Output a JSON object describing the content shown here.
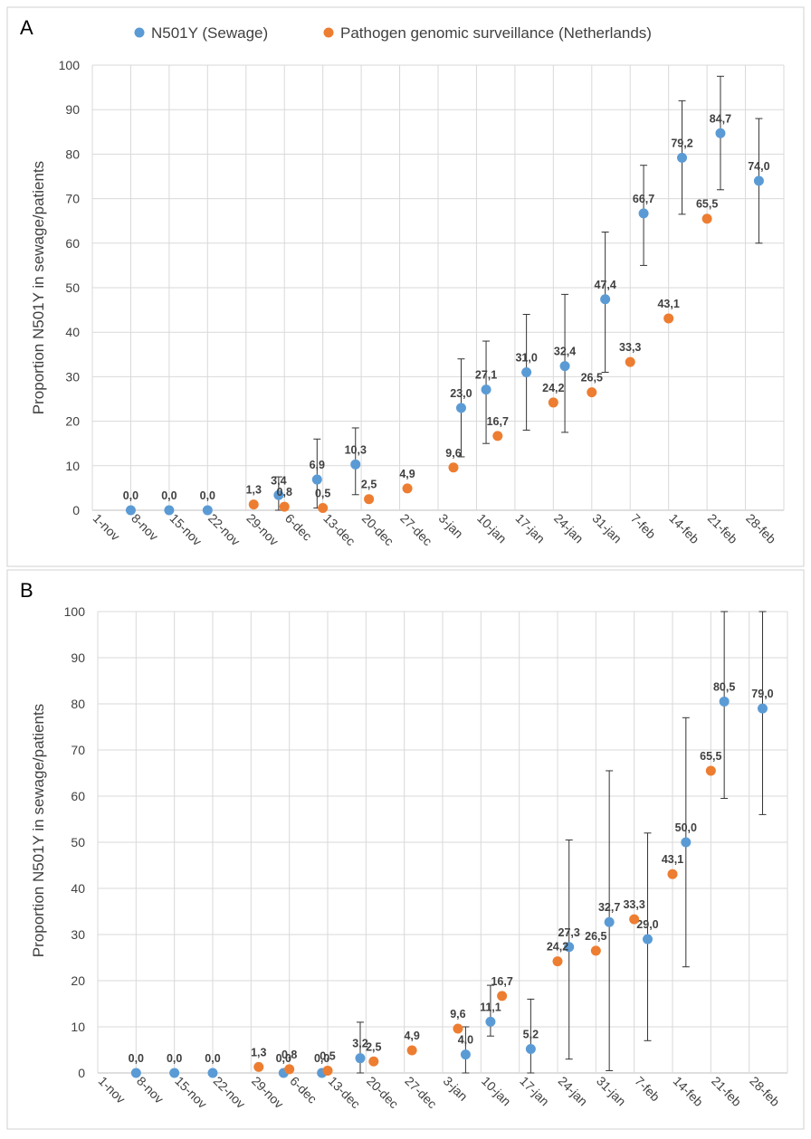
{
  "legend": {
    "sewage_label": "N501Y (Sewage)",
    "surveillance_label": "Pathogen genomic surveillance (Netherlands)"
  },
  "colors": {
    "sewage": "#5b9bd5",
    "surveillance": "#ed7d31"
  },
  "chart_data": [
    {
      "type": "scatter",
      "panel_label": "A",
      "title": "",
      "xlabel": "",
      "ylabel": "Proportion N501Y in sewage/patients",
      "ylim": [
        0,
        100
      ],
      "yticks": [
        "0",
        "10",
        "20",
        "30",
        "40",
        "50",
        "60",
        "70",
        "80",
        "90",
        "100"
      ],
      "categories": [
        "1-nov",
        "8-nov",
        "15-nov",
        "22-nov",
        "29-nov",
        "6-dec",
        "13-dec",
        "20-dec",
        "27-dec",
        "3-jan",
        "10-jan",
        "17-jan",
        "24-jan",
        "31-jan",
        "7-feb",
        "14-feb",
        "21-feb",
        "28-feb"
      ],
      "grid": true,
      "legend_position": "top",
      "series": [
        {
          "name": "N501Y (Sewage)",
          "points": [
            {
              "x": 1,
              "y": 0.0,
              "label": "0,0"
            },
            {
              "x": 2,
              "y": 0.0,
              "label": "0,0"
            },
            {
              "x": 3,
              "y": 0.0,
              "label": "0,0"
            },
            {
              "x": 4.85,
              "y": 3.4,
              "label": "3,4",
              "err": [
                0.0,
                7.5
              ]
            },
            {
              "x": 5.85,
              "y": 6.9,
              "label": "6,9",
              "err": [
                0.5,
                16.0
              ]
            },
            {
              "x": 6.85,
              "y": 10.3,
              "label": "10,3",
              "err": [
                3.5,
                18.5
              ]
            },
            {
              "x": 9.6,
              "y": 23.0,
              "label": "23,0",
              "err": [
                12.0,
                34.0
              ]
            },
            {
              "x": 10.25,
              "y": 27.1,
              "label": "27,1",
              "err": [
                15.0,
                38.0
              ]
            },
            {
              "x": 11.3,
              "y": 31.0,
              "label": "31,0",
              "err": [
                18.0,
                44.0
              ]
            },
            {
              "x": 12.3,
              "y": 32.4,
              "label": "32,4",
              "err": [
                17.5,
                48.5
              ]
            },
            {
              "x": 13.35,
              "y": 47.4,
              "label": "47,4",
              "err": [
                31.0,
                62.5
              ]
            },
            {
              "x": 14.35,
              "y": 66.7,
              "label": "66,7",
              "err": [
                55.0,
                77.5
              ]
            },
            {
              "x": 15.35,
              "y": 79.2,
              "label": "79,2",
              "err": [
                66.5,
                92.0
              ]
            },
            {
              "x": 16.35,
              "y": 84.7,
              "label": "84,7",
              "err": [
                72.0,
                97.5
              ]
            },
            {
              "x": 17.35,
              "y": 74.0,
              "label": "74,0",
              "err": [
                60.0,
                88.0
              ]
            }
          ]
        },
        {
          "name": "Pathogen genomic surveillance (Netherlands)",
          "points": [
            {
              "x": 4.2,
              "y": 1.3,
              "label": "1,3"
            },
            {
              "x": 5.0,
              "y": 0.8,
              "label": "0,8"
            },
            {
              "x": 6.0,
              "y": 0.5,
              "label": "0,5"
            },
            {
              "x": 7.2,
              "y": 2.5,
              "label": "2,5"
            },
            {
              "x": 8.2,
              "y": 4.9,
              "label": "4,9"
            },
            {
              "x": 9.4,
              "y": 9.6,
              "label": "9,6"
            },
            {
              "x": 10.55,
              "y": 16.7,
              "label": "16,7"
            },
            {
              "x": 12.0,
              "y": 24.2,
              "label": "24,2"
            },
            {
              "x": 13.0,
              "y": 26.5,
              "label": "26,5"
            },
            {
              "x": 14.0,
              "y": 33.3,
              "label": "33,3"
            },
            {
              "x": 15.0,
              "y": 43.1,
              "label": "43,1"
            },
            {
              "x": 16.0,
              "y": 65.5,
              "label": "65,5"
            }
          ]
        }
      ]
    },
    {
      "type": "scatter",
      "panel_label": "B",
      "title": "",
      "xlabel": "",
      "ylabel": "Proportion N501Y in sewage/patients",
      "ylim": [
        0,
        100
      ],
      "yticks": [
        "0",
        "10",
        "20",
        "30",
        "40",
        "50",
        "60",
        "70",
        "80",
        "90",
        "100"
      ],
      "categories": [
        "1-nov",
        "8-nov",
        "15-nov",
        "22-nov",
        "29-nov",
        "6-dec",
        "13-dec",
        "20-dec",
        "27-dec",
        "3-jan",
        "10-jan",
        "17-jan",
        "24-jan",
        "31-jan",
        "7-feb",
        "14-feb",
        "21-feb",
        "28-feb"
      ],
      "grid": true,
      "series": [
        {
          "name": "N501Y (Sewage)",
          "points": [
            {
              "x": 1,
              "y": 0.0,
              "label": "0,0"
            },
            {
              "x": 2,
              "y": 0.0,
              "label": "0,0"
            },
            {
              "x": 3,
              "y": 0.0,
              "label": "0,0"
            },
            {
              "x": 4.85,
              "y": 0.0,
              "label": "0,0"
            },
            {
              "x": 5.85,
              "y": 0.0,
              "label": "0,0"
            },
            {
              "x": 6.85,
              "y": 3.2,
              "label": "3,2",
              "err": [
                0.0,
                11.0
              ]
            },
            {
              "x": 9.6,
              "y": 4.0,
              "label": "4,0",
              "err": [
                0.0,
                10.0
              ]
            },
            {
              "x": 10.25,
              "y": 11.1,
              "label": "11,1",
              "err": [
                8.0,
                19.0
              ]
            },
            {
              "x": 11.3,
              "y": 5.2,
              "label": "5,2",
              "err": [
                0.0,
                16.0
              ]
            },
            {
              "x": 12.3,
              "y": 27.3,
              "label": "27,3",
              "err": [
                3.0,
                50.5
              ]
            },
            {
              "x": 13.35,
              "y": 32.7,
              "label": "32,7",
              "err": [
                0.5,
                65.5
              ]
            },
            {
              "x": 14.35,
              "y": 29.0,
              "label": "29,0",
              "err": [
                7.0,
                52.0
              ]
            },
            {
              "x": 15.35,
              "y": 50.0,
              "label": "50,0",
              "err": [
                23.0,
                77.0
              ]
            },
            {
              "x": 16.35,
              "y": 80.5,
              "label": "80,5",
              "err": [
                59.5,
                100.0
              ]
            },
            {
              "x": 17.35,
              "y": 79.0,
              "label": "79,0",
              "err": [
                56.0,
                100.0
              ]
            }
          ]
        },
        {
          "name": "Pathogen genomic surveillance (Netherlands)",
          "points": [
            {
              "x": 4.2,
              "y": 1.3,
              "label": "1,3"
            },
            {
              "x": 5.0,
              "y": 0.8,
              "label": "0,8"
            },
            {
              "x": 6.0,
              "y": 0.5,
              "label": "0,5"
            },
            {
              "x": 7.2,
              "y": 2.5,
              "label": "2,5"
            },
            {
              "x": 8.2,
              "y": 4.9,
              "label": "4,9"
            },
            {
              "x": 9.4,
              "y": 9.6,
              "label": "9,6"
            },
            {
              "x": 10.55,
              "y": 16.7,
              "label": "16,7"
            },
            {
              "x": 12.0,
              "y": 24.2,
              "label": "24,2"
            },
            {
              "x": 13.0,
              "y": 26.5,
              "label": "26,5"
            },
            {
              "x": 14.0,
              "y": 33.3,
              "label": "33,3"
            },
            {
              "x": 15.0,
              "y": 43.1,
              "label": "43,1"
            },
            {
              "x": 16.0,
              "y": 65.5,
              "label": "65,5"
            }
          ]
        }
      ]
    }
  ]
}
